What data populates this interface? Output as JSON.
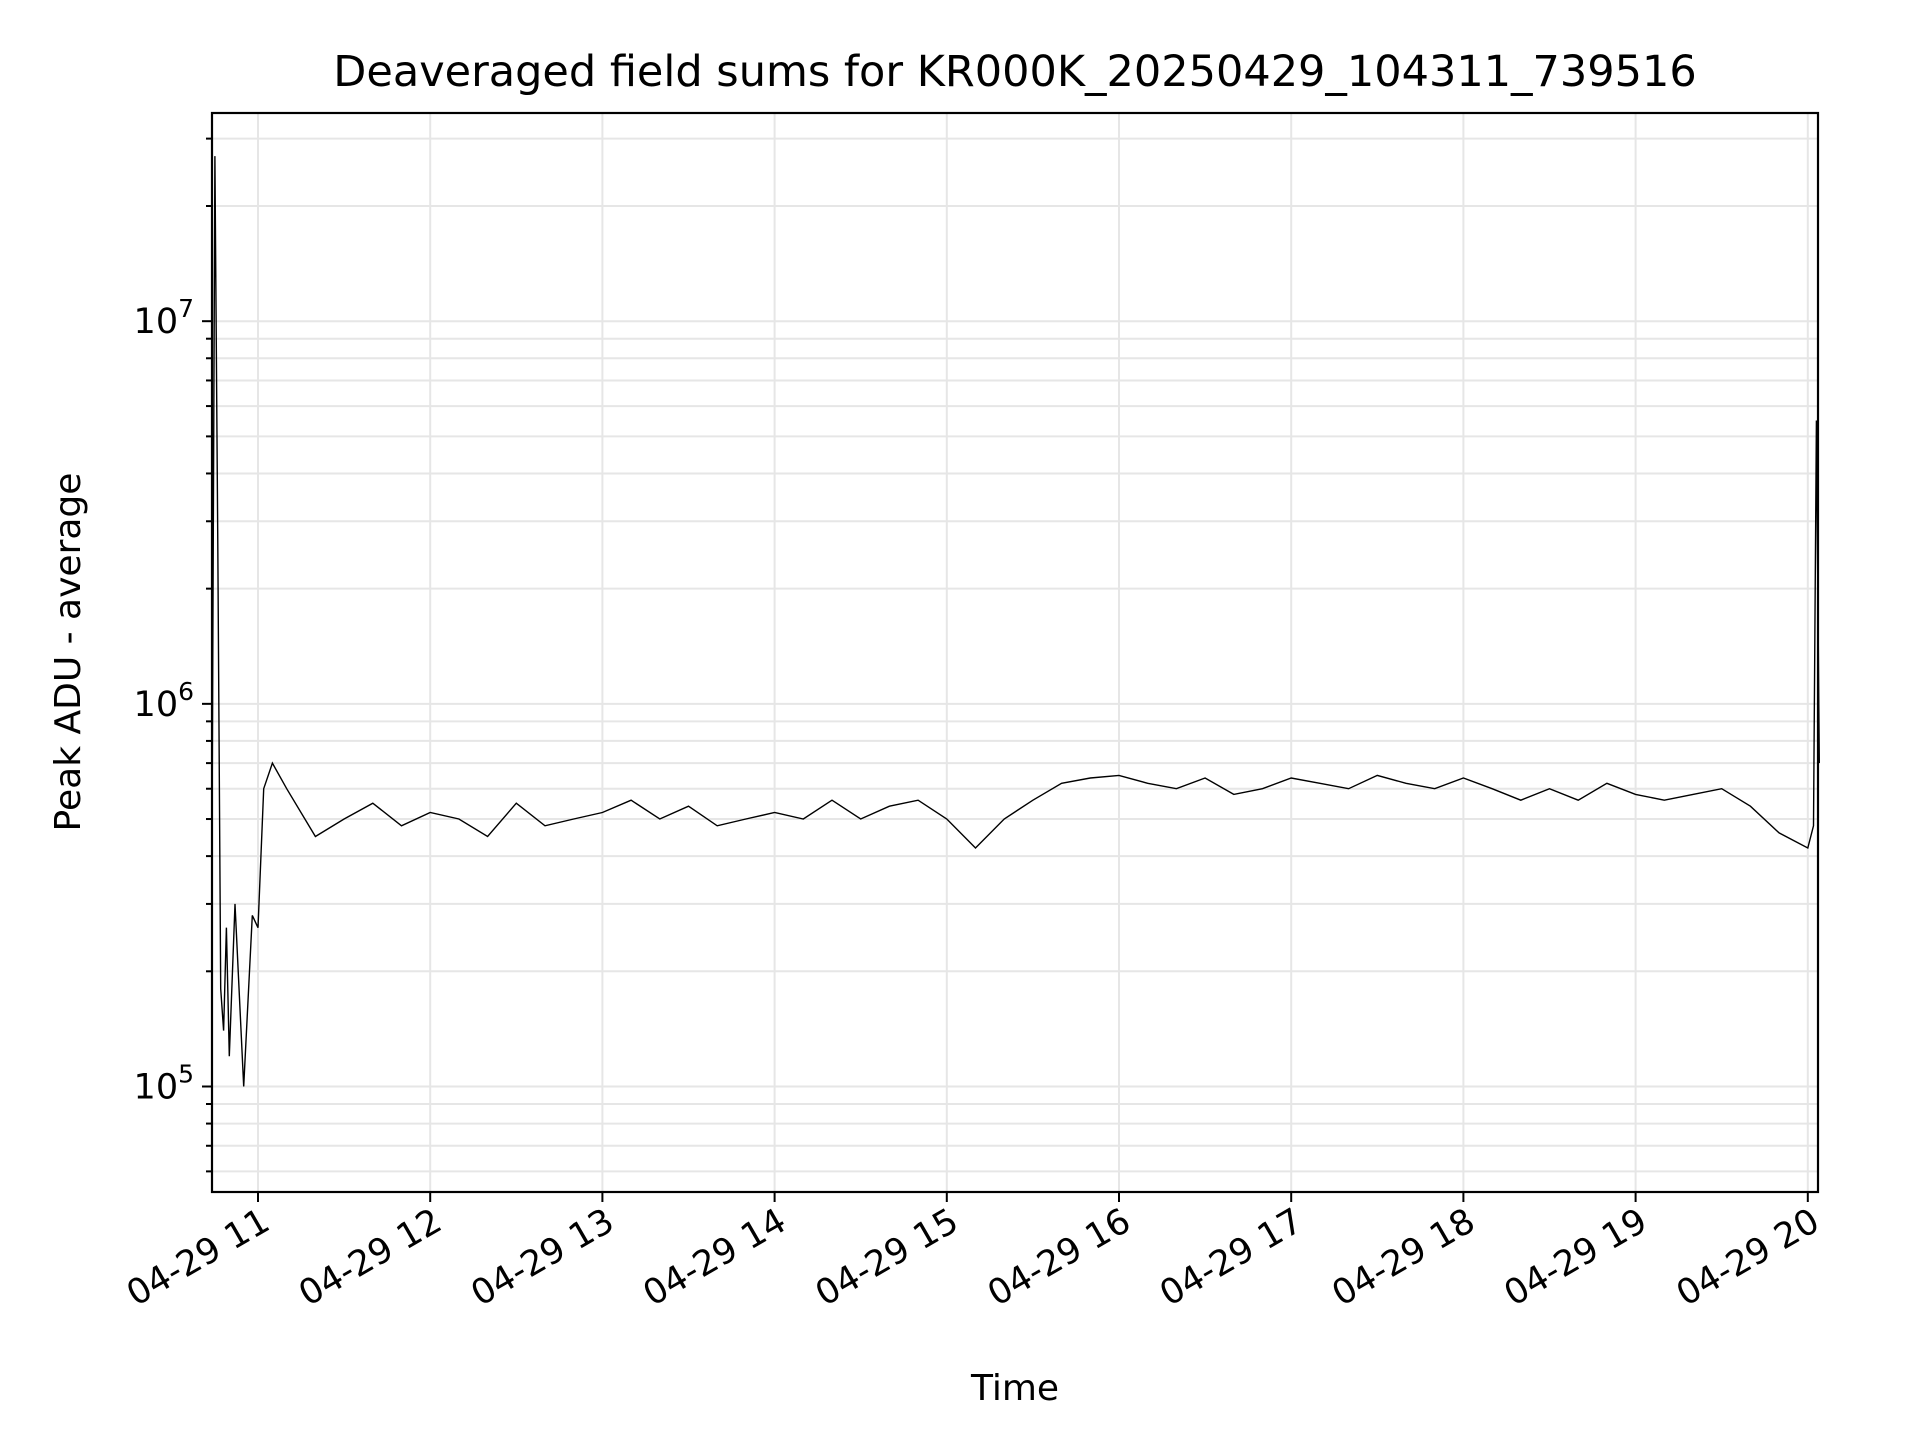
{
  "chart_data": {
    "type": "line",
    "title": "Deaveraged field sums for KR000K_20250429_104311_739516",
    "xlabel": "Time",
    "ylabel": "Peak ADU - average",
    "x_range": [
      "04-29 10:44",
      "04-29 20:04"
    ],
    "xticks": [
      "04-29 11",
      "04-29 12",
      "04-29 13",
      "04-29 14",
      "04-29 15",
      "04-29 16",
      "04-29 17",
      "04-29 18",
      "04-29 19",
      "04-29 20"
    ],
    "y_scale": "log",
    "ylim": [
      53000,
      35000000
    ],
    "yticks": [
      {
        "value": 100000,
        "base": "10",
        "exp": "5"
      },
      {
        "value": 1000000,
        "base": "10",
        "exp": "6"
      },
      {
        "value": 10000000,
        "base": "10",
        "exp": "7"
      }
    ],
    "grid": true,
    "line_color": "#000000",
    "series": [
      {
        "x": [
          "10:44",
          "10:45",
          "10:46",
          "10:47",
          "10:48",
          "10:49",
          "10:50",
          "10:52",
          "10:55",
          "10:58",
          "11:00",
          "11:02",
          "11:05",
          "11:10",
          "11:20",
          "11:30",
          "11:40",
          "11:50",
          "12:00",
          "12:10",
          "12:20",
          "12:30",
          "12:40",
          "12:50",
          "13:00",
          "13:10",
          "13:20",
          "13:30",
          "13:40",
          "13:50",
          "14:00",
          "14:10",
          "14:20",
          "14:30",
          "14:40",
          "14:50",
          "15:00",
          "15:10",
          "15:20",
          "15:30",
          "15:40",
          "15:50",
          "16:00",
          "16:10",
          "16:20",
          "16:30",
          "16:40",
          "16:50",
          "17:00",
          "17:10",
          "17:20",
          "17:30",
          "17:40",
          "17:50",
          "18:00",
          "18:10",
          "18:20",
          "18:30",
          "18:40",
          "18:50",
          "19:00",
          "19:10",
          "19:20",
          "19:30",
          "19:40",
          "19:50",
          "20:00",
          "20:02",
          "20:03",
          "20:04"
        ],
        "y": [
          500000,
          27000000,
          2600000,
          180000,
          140000,
          260000,
          120000,
          300000,
          100000,
          280000,
          260000,
          600000,
          700000,
          600000,
          450000,
          500000,
          550000,
          480000,
          520000,
          500000,
          450000,
          550000,
          480000,
          500000,
          520000,
          560000,
          500000,
          540000,
          480000,
          500000,
          520000,
          500000,
          560000,
          500000,
          540000,
          560000,
          500000,
          420000,
          500000,
          560000,
          620000,
          640000,
          650000,
          620000,
          600000,
          640000,
          580000,
          600000,
          640000,
          620000,
          600000,
          650000,
          620000,
          600000,
          640000,
          600000,
          560000,
          600000,
          560000,
          620000,
          580000,
          560000,
          580000,
          600000,
          540000,
          460000,
          420000,
          480000,
          5500000,
          700000
        ]
      }
    ]
  }
}
